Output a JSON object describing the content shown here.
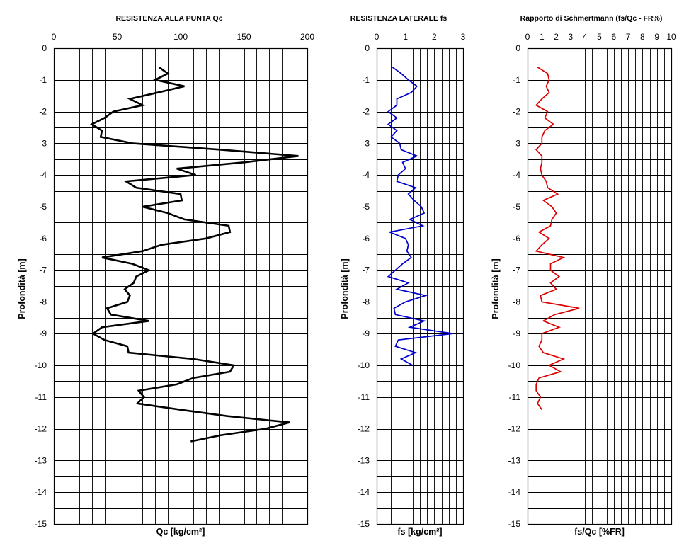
{
  "chart_data": [
    {
      "type": "line",
      "title": "RESISTENZA ALLA PUNTA Qc",
      "xlabel": "Qc [kg/cm²]",
      "ylabel": "Profondità [m]",
      "xlim": [
        0,
        200
      ],
      "ylim": [
        -15,
        0
      ],
      "xticks": [
        0,
        50,
        100,
        150,
        200
      ],
      "yticks": [
        0,
        -1,
        -2,
        -3,
        -4,
        -5,
        -6,
        -7,
        -8,
        -9,
        -10,
        -11,
        -12,
        -13,
        -14,
        -15
      ],
      "grid": true,
      "series": [
        {
          "color": "#000000",
          "x": [
            83,
            90,
            80,
            103,
            82,
            60,
            70,
            47,
            40,
            30,
            38,
            37,
            62,
            132,
            193,
            150,
            97,
            112,
            57,
            65,
            100,
            101,
            70,
            90,
            103,
            138,
            139,
            120,
            85,
            70,
            38,
            62,
            75,
            65,
            63,
            56,
            60,
            58,
            42,
            45,
            75,
            38,
            31,
            40,
            58,
            59,
            110,
            142,
            139,
            110,
            97,
            67,
            71,
            66,
            100,
            137,
            186,
            167,
            132,
            108
          ],
          "y": [
            -0.6,
            -0.8,
            -1.0,
            -1.2,
            -1.4,
            -1.6,
            -1.8,
            -2.0,
            -2.2,
            -2.4,
            -2.6,
            -2.8,
            -3.0,
            -3.2,
            -3.4,
            -3.6,
            -3.8,
            -4.0,
            -4.2,
            -4.4,
            -4.6,
            -4.8,
            -5.0,
            -5.2,
            -5.4,
            -5.6,
            -5.8,
            -6.0,
            -6.2,
            -6.4,
            -6.6,
            -6.8,
            -7.0,
            -7.2,
            -7.4,
            -7.6,
            -7.8,
            -8.0,
            -8.2,
            -8.4,
            -8.6,
            -8.8,
            -9.0,
            -9.2,
            -9.4,
            -9.6,
            -9.8,
            -10.0,
            -10.2,
            -10.4,
            -10.6,
            -10.8,
            -11.0,
            -11.2,
            -11.4,
            -11.6,
            -11.8,
            -12.0,
            -12.2,
            -12.4
          ]
        }
      ]
    },
    {
      "type": "line",
      "title": "RESISTENZA LATERALE fs",
      "xlabel": "fs [kg/cm²]",
      "ylabel": "Profondità [m]",
      "xlim": [
        0,
        3
      ],
      "ylim": [
        -15,
        0
      ],
      "xticks": [
        0,
        1,
        2,
        3
      ],
      "yticks": [
        0,
        -1,
        -2,
        -3,
        -4,
        -5,
        -6,
        -7,
        -8,
        -9,
        -10,
        -11,
        -12,
        -13,
        -14,
        -15
      ],
      "grid": true,
      "series": [
        {
          "color": "#0000cc",
          "x": [
            0.55,
            0.85,
            1.1,
            1.4,
            1.2,
            0.7,
            0.7,
            0.4,
            0.7,
            0.4,
            0.7,
            0.5,
            0.8,
            0.85,
            1.4,
            0.9,
            1.0,
            0.75,
            0.7,
            1.35,
            1.1,
            1.3,
            1.55,
            1.65,
            1.15,
            1.6,
            0.45,
            1.0,
            1.1,
            1.05,
            1.2,
            0.9,
            0.65,
            0.4,
            1.1,
            0.7,
            1.7,
            1.0,
            0.6,
            0.65,
            1.65,
            1.15,
            2.65,
            0.75,
            0.65,
            1.35,
            0.85,
            1.25
          ],
          "y": [
            -0.6,
            -0.8,
            -1.0,
            -1.2,
            -1.4,
            -1.6,
            -1.8,
            -2.0,
            -2.2,
            -2.4,
            -2.6,
            -2.8,
            -3.0,
            -3.2,
            -3.4,
            -3.6,
            -3.8,
            -4.0,
            -4.2,
            -4.4,
            -4.6,
            -4.8,
            -5.0,
            -5.2,
            -5.4,
            -5.6,
            -5.8,
            -6.0,
            -6.2,
            -6.4,
            -6.6,
            -6.8,
            -7.0,
            -7.2,
            -7.4,
            -7.6,
            -7.8,
            -8.0,
            -8.2,
            -8.4,
            -8.6,
            -8.8,
            -9.0,
            -9.2,
            -9.4,
            -9.6,
            -9.8,
            -10.0
          ]
        }
      ]
    },
    {
      "type": "line",
      "title": "Rapporto di Schmertmann (fs/Qc - FR%)",
      "xlabel": "fs/Qc [%FR]",
      "ylabel": "Profondità [m]",
      "xlim": [
        0,
        10
      ],
      "ylim": [
        -15,
        0
      ],
      "xticks": [
        0,
        1,
        2,
        3,
        4,
        5,
        6,
        7,
        8,
        9,
        10
      ],
      "yticks": [
        0,
        -1,
        -2,
        -3,
        -4,
        -5,
        -6,
        -7,
        -8,
        -9,
        -10,
        -11,
        -12,
        -13,
        -14,
        -15
      ],
      "grid": true,
      "series": [
        {
          "color": "#dd0000",
          "x": [
            0.7,
            1.4,
            1.5,
            1.3,
            1.5,
            1.0,
            0.6,
            1.4,
            1.2,
            1.8,
            1.2,
            1.0,
            1.0,
            0.6,
            1.0,
            1.0,
            0.9,
            1.0,
            1.3,
            1.4,
            2.1,
            1.1,
            1.7,
            2.0,
            1.7,
            1.6,
            0.8,
            1.5,
            1.0,
            0.6,
            2.5,
            1.6,
            1.6,
            2.2,
            1.6,
            2.0,
            0.9,
            1.0,
            3.6,
            1.9,
            1.1,
            2.2,
            1.0,
            1.0,
            0.8,
            1.1,
            2.5,
            1.5,
            2.3,
            0.8,
            0.6,
            0.6,
            0.9,
            0.7,
            1.0
          ],
          "y": [
            -0.6,
            -0.8,
            -1.0,
            -1.2,
            -1.4,
            -1.6,
            -1.8,
            -2.0,
            -2.2,
            -2.4,
            -2.6,
            -2.8,
            -3.0,
            -3.2,
            -3.4,
            -3.6,
            -3.8,
            -4.0,
            -4.2,
            -4.4,
            -4.6,
            -4.8,
            -5.0,
            -5.2,
            -5.4,
            -5.6,
            -5.8,
            -6.0,
            -6.2,
            -6.4,
            -6.6,
            -6.8,
            -7.0,
            -7.2,
            -7.4,
            -7.6,
            -7.8,
            -8.0,
            -8.2,
            -8.4,
            -8.6,
            -8.8,
            -9.0,
            -9.2,
            -9.4,
            -9.6,
            -9.8,
            -10.0,
            -10.2,
            -10.4,
            -10.6,
            -10.8,
            -11.0,
            -11.2,
            -11.4
          ]
        }
      ]
    }
  ]
}
